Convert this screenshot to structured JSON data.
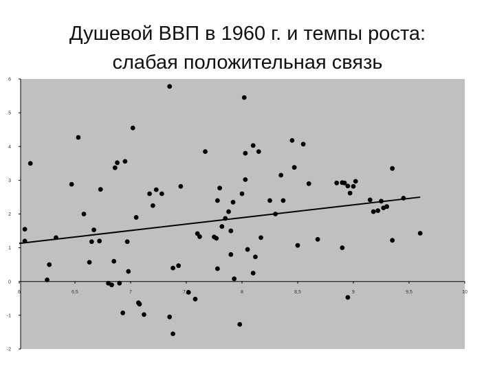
{
  "slide": {
    "title_line1": "Душевой ВВП в 1960 г. и темпы роста:",
    "title_line2": "слабая положительная связь"
  },
  "colors": {
    "plot_background": "#c0c0c0",
    "marker": "#000000",
    "trendline": "#000000",
    "axis": "#000000"
  },
  "chart_data": {
    "type": "scatter",
    "title": "",
    "xlabel": "",
    "ylabel": "",
    "xlim": [
      6,
      10
    ],
    "ylim": [
      -2,
      6
    ],
    "x_ticks": [
      "6",
      "6,5",
      "7",
      "7,5",
      "8",
      "8,5",
      "9",
      "9,5",
      "10"
    ],
    "y_ticks": [
      "-2",
      "-1",
      "0",
      "1",
      "2",
      "3",
      "4",
      "5",
      "6"
    ],
    "grid": false,
    "legend": "none",
    "trendline": {
      "x": [
        6.0,
        9.6
      ],
      "y": [
        1.13,
        2.5
      ]
    },
    "points": [
      [
        6.05,
        1.55
      ],
      [
        6.05,
        1.2
      ],
      [
        6.1,
        3.5
      ],
      [
        6.25,
        0.05
      ],
      [
        6.27,
        0.5
      ],
      [
        6.33,
        1.3
      ],
      [
        6.47,
        2.88
      ],
      [
        6.53,
        4.27
      ],
      [
        6.58,
        2.0
      ],
      [
        6.63,
        0.57
      ],
      [
        6.65,
        1.18
      ],
      [
        6.67,
        1.53
      ],
      [
        6.72,
        1.2
      ],
      [
        6.73,
        2.73
      ],
      [
        6.8,
        -0.05
      ],
      [
        6.83,
        -0.1
      ],
      [
        6.85,
        0.6
      ],
      [
        6.86,
        3.37
      ],
      [
        6.88,
        3.52
      ],
      [
        6.9,
        -0.05
      ],
      [
        6.93,
        -0.93
      ],
      [
        6.95,
        3.56
      ],
      [
        6.97,
        1.18
      ],
      [
        6.98,
        0.3
      ],
      [
        7.02,
        4.55
      ],
      [
        7.05,
        1.9
      ],
      [
        7.07,
        -0.63
      ],
      [
        7.08,
        -0.67
      ],
      [
        7.12,
        -0.98
      ],
      [
        7.17,
        2.6
      ],
      [
        7.2,
        2.25
      ],
      [
        7.23,
        2.72
      ],
      [
        7.28,
        2.6
      ],
      [
        7.35,
        5.78
      ],
      [
        7.35,
        -1.05
      ],
      [
        7.38,
        0.4
      ],
      [
        7.38,
        -1.55
      ],
      [
        7.43,
        0.47
      ],
      [
        7.45,
        2.82
      ],
      [
        7.52,
        -0.32
      ],
      [
        7.58,
        -0.52
      ],
      [
        7.6,
        1.42
      ],
      [
        7.62,
        1.33
      ],
      [
        7.67,
        3.85
      ],
      [
        7.75,
        1.32
      ],
      [
        7.77,
        1.28
      ],
      [
        7.78,
        2.4
      ],
      [
        7.78,
        0.38
      ],
      [
        7.8,
        2.77
      ],
      [
        7.82,
        1.63
      ],
      [
        7.85,
        1.87
      ],
      [
        7.88,
        2.07
      ],
      [
        7.9,
        0.8
      ],
      [
        7.9,
        1.5
      ],
      [
        7.92,
        2.35
      ],
      [
        7.93,
        0.08
      ],
      [
        7.98,
        -1.27
      ],
      [
        8.0,
        2.6
      ],
      [
        8.02,
        5.45
      ],
      [
        8.03,
        3.02
      ],
      [
        8.03,
        3.8
      ],
      [
        8.05,
        0.95
      ],
      [
        8.1,
        0.25
      ],
      [
        8.1,
        4.03
      ],
      [
        8.12,
        0.73
      ],
      [
        8.15,
        3.85
      ],
      [
        8.17,
        1.3
      ],
      [
        8.25,
        2.4
      ],
      [
        8.3,
        2.0
      ],
      [
        8.35,
        3.15
      ],
      [
        8.37,
        2.4
      ],
      [
        8.45,
        4.18
      ],
      [
        8.47,
        3.38
      ],
      [
        8.5,
        1.07
      ],
      [
        8.55,
        4.07
      ],
      [
        8.6,
        2.9
      ],
      [
        8.68,
        1.25
      ],
      [
        8.85,
        2.92
      ],
      [
        8.9,
        2.93
      ],
      [
        8.92,
        2.92
      ],
      [
        8.9,
        1.0
      ],
      [
        8.95,
        2.83
      ],
      [
        8.97,
        2.62
      ],
      [
        8.95,
        -0.47
      ],
      [
        9.0,
        2.82
      ],
      [
        9.02,
        2.97
      ],
      [
        9.15,
        2.42
      ],
      [
        9.18,
        2.07
      ],
      [
        9.22,
        2.1
      ],
      [
        9.25,
        2.38
      ],
      [
        9.27,
        2.18
      ],
      [
        9.3,
        2.22
      ],
      [
        9.35,
        3.35
      ],
      [
        9.35,
        1.22
      ],
      [
        9.45,
        2.47
      ],
      [
        9.6,
        1.43
      ]
    ]
  }
}
